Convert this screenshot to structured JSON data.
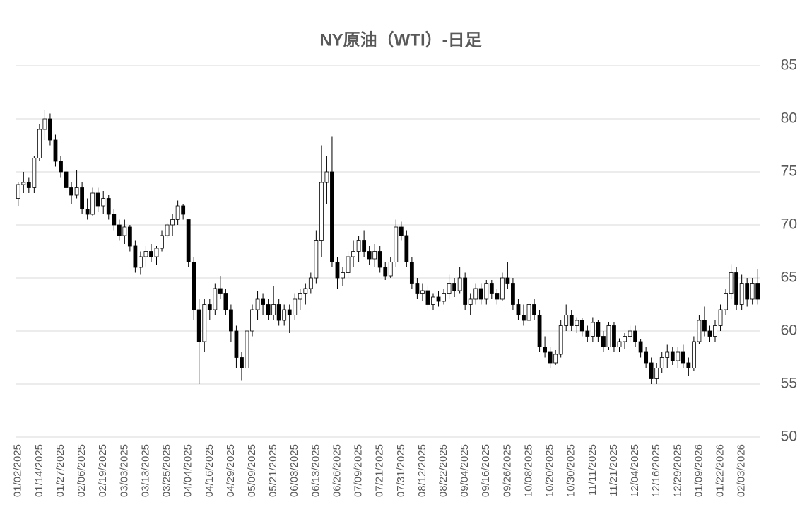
{
  "chart_data": {
    "type": "candlestick",
    "title": "NY原油（WTI）-日足",
    "categories": [
      "01/02/2025",
      null,
      null,
      null,
      "01/14/2025",
      null,
      null,
      null,
      "01/27/2025",
      null,
      null,
      null,
      "02/06/2025",
      null,
      null,
      null,
      "02/19/2025",
      null,
      null,
      null,
      "03/03/2025",
      null,
      null,
      null,
      "03/13/2025",
      null,
      null,
      null,
      "03/25/2025",
      null,
      null,
      null,
      "04/04/2025",
      null,
      null,
      null,
      "04/16/2025",
      null,
      null,
      null,
      "04/29/2025",
      null,
      null,
      null,
      "05/09/2025",
      null,
      null,
      null,
      "05/21/2025",
      null,
      null,
      null,
      "06/03/2025",
      null,
      null,
      null,
      "06/13/2025",
      null,
      null,
      null,
      "06/26/2025",
      null,
      null,
      null,
      "07/09/2025",
      null,
      null,
      null,
      "07/21/2025",
      null,
      null,
      null,
      "07/31/2025",
      null,
      null,
      null,
      "08/12/2025",
      null,
      null,
      null,
      "08/22/2025",
      null,
      null,
      null,
      "09/04/2025",
      null,
      null,
      null,
      "09/16/2025",
      null,
      null,
      null,
      "09/26/2025",
      null,
      null,
      null,
      "10/08/2025",
      null,
      null,
      null,
      "10/20/2025",
      null,
      null,
      null,
      "10/30/2025",
      null,
      null,
      null,
      "11/11/2025",
      null,
      null,
      null,
      "11/21/2025",
      null,
      null,
      null,
      "12/04/2025",
      null,
      null,
      null,
      "12/16/2025",
      null,
      null,
      null,
      "12/29/2025",
      null,
      null,
      null,
      "01/09/2026",
      null,
      null,
      null,
      "01/22/2026",
      null,
      null,
      null,
      "02/03/2026",
      null,
      null,
      null
    ],
    "ohlc": [
      [
        72.5,
        74,
        71.8,
        73.8
      ],
      [
        73.8,
        75,
        73,
        74
      ],
      [
        74,
        74.5,
        73,
        73.5
      ],
      [
        73.5,
        76.5,
        73,
        76.3
      ],
      [
        76.3,
        79.5,
        76,
        79
      ],
      [
        79,
        80.8,
        78,
        80
      ],
      [
        80,
        80.5,
        77.5,
        78
      ],
      [
        78,
        78.5,
        75.5,
        76
      ],
      [
        76,
        76.5,
        74.5,
        75
      ],
      [
        75,
        75.5,
        73,
        73.5
      ],
      [
        73.5,
        74,
        72,
        72.8
      ],
      [
        72.8,
        75.2,
        72.5,
        73.5
      ],
      [
        73.5,
        74,
        71,
        71.5
      ],
      [
        71.5,
        72.5,
        70.5,
        71
      ],
      [
        71,
        73.5,
        70.8,
        73
      ],
      [
        73,
        73.5,
        71.2,
        71.8
      ],
      [
        71.8,
        73.2,
        71,
        72.5
      ],
      [
        72.5,
        72.8,
        70.5,
        71
      ],
      [
        71,
        71.5,
        69.5,
        70
      ],
      [
        70,
        70.5,
        68.5,
        69
      ],
      [
        69,
        70.5,
        68.2,
        69.8
      ],
      [
        69.8,
        70,
        67.5,
        68
      ],
      [
        68,
        68.5,
        65.5,
        66
      ],
      [
        66,
        67.5,
        65.3,
        67
      ],
      [
        67,
        68,
        66,
        67.5
      ],
      [
        67.5,
        68.2,
        66.5,
        67
      ],
      [
        67,
        68,
        66.2,
        67.8
      ],
      [
        67.8,
        69.5,
        67.5,
        69
      ],
      [
        69,
        70.2,
        68.8,
        70
      ],
      [
        70,
        71,
        69,
        70.5
      ],
      [
        70.5,
        72.3,
        70,
        71.8
      ],
      [
        71.8,
        72,
        70.5,
        71
      ],
      [
        70.5,
        70.5,
        66,
        66.5
      ],
      [
        66.5,
        67,
        61,
        62
      ],
      [
        62,
        63,
        55,
        59
      ],
      [
        59,
        63,
        58,
        62.5
      ],
      [
        62.5,
        63,
        61,
        62
      ],
      [
        62,
        64.5,
        61.5,
        64
      ],
      [
        64,
        65.2,
        63,
        63.5
      ],
      [
        63.5,
        64,
        61.5,
        62
      ],
      [
        62,
        62.5,
        59,
        60
      ],
      [
        60,
        60.5,
        56.5,
        57.5
      ],
      [
        57.5,
        58,
        55.3,
        56.5
      ],
      [
        56.5,
        60.5,
        56,
        60
      ],
      [
        60,
        62.5,
        59.5,
        62
      ],
      [
        62,
        63.8,
        61,
        63
      ],
      [
        63,
        63.5,
        61.5,
        62.5
      ],
      [
        62.5,
        63,
        61,
        61.5
      ],
      [
        61.5,
        64.2,
        61,
        62.5
      ],
      [
        62.5,
        63,
        60.5,
        61
      ],
      [
        61,
        62.5,
        60.5,
        62
      ],
      [
        62,
        62.5,
        59.8,
        61.5
      ],
      [
        61.5,
        63.5,
        61,
        63
      ],
      [
        63,
        64,
        62,
        63.5
      ],
      [
        63.5,
        64.5,
        62.5,
        64
      ],
      [
        64,
        65.5,
        63.5,
        65
      ],
      [
        65,
        69.5,
        64.5,
        68.5
      ],
      [
        68.5,
        77.5,
        67,
        74
      ],
      [
        74,
        76.5,
        72,
        75
      ],
      [
        75,
        78.3,
        66,
        66.5
      ],
      [
        66.5,
        67,
        64,
        65
      ],
      [
        65,
        66,
        64.2,
        65.5
      ],
      [
        65.5,
        67.5,
        65,
        67
      ],
      [
        67,
        68.5,
        66,
        67.5
      ],
      [
        67.5,
        69,
        66.5,
        68.5
      ],
      [
        68.5,
        69.5,
        67,
        67.5
      ],
      [
        67.5,
        68,
        66.2,
        66.8
      ],
      [
        66.8,
        68.2,
        66,
        67.5
      ],
      [
        67.5,
        68,
        65.5,
        66
      ],
      [
        66,
        66.5,
        64.8,
        65.2
      ],
      [
        65.2,
        67,
        65,
        66.5
      ],
      [
        66.5,
        70.5,
        66,
        69.8
      ],
      [
        69.8,
        70.3,
        68.5,
        69
      ],
      [
        69,
        69.5,
        66,
        66.5
      ],
      [
        66.5,
        67,
        64,
        64.5
      ],
      [
        64.5,
        65,
        63,
        63.5
      ],
      [
        63.5,
        64.5,
        62.8,
        63.8
      ],
      [
        63.8,
        64.2,
        62,
        62.5
      ],
      [
        62.5,
        63.5,
        62,
        63.2
      ],
      [
        63.2,
        63.8,
        62.3,
        62.8
      ],
      [
        62.8,
        64,
        62.5,
        63.5
      ],
      [
        63.5,
        65.3,
        63,
        64.5
      ],
      [
        64.5,
        65,
        63.2,
        63.8
      ],
      [
        63.8,
        66,
        63.5,
        65
      ],
      [
        65,
        65.5,
        62,
        62.5
      ],
      [
        62.5,
        63.5,
        61.5,
        63
      ],
      [
        63,
        64.5,
        62.5,
        64
      ],
      [
        64,
        64.5,
        62.5,
        63
      ],
      [
        63,
        64.8,
        62.5,
        64.5
      ],
      [
        64.5,
        64.8,
        63,
        63.5
      ],
      [
        63.5,
        64,
        62.5,
        63
      ],
      [
        63,
        65.5,
        62.8,
        65
      ],
      [
        65,
        66.5,
        64,
        64.5
      ],
      [
        64.5,
        65,
        62,
        62.5
      ],
      [
        62.5,
        63,
        61,
        61.5
      ],
      [
        61.5,
        62.5,
        60.5,
        61
      ],
      [
        61,
        62.8,
        60.5,
        62.5
      ],
      [
        62.5,
        63,
        61,
        61.5
      ],
      [
        61.5,
        62,
        58,
        58.5
      ],
      [
        58.5,
        59.5,
        57.5,
        58
      ],
      [
        58,
        58.5,
        56.5,
        57
      ],
      [
        57,
        58.2,
        56.8,
        57.8
      ],
      [
        57.8,
        61,
        57.5,
        60.5
      ],
      [
        60.5,
        62.5,
        60,
        61.5
      ],
      [
        61.5,
        62,
        60,
        60.5
      ],
      [
        60.5,
        61.3,
        59.8,
        61
      ],
      [
        61,
        61.2,
        59.5,
        60
      ],
      [
        60,
        60.5,
        59,
        59.5
      ],
      [
        59.5,
        61.3,
        59,
        60.8
      ],
      [
        60.8,
        61,
        59,
        59.5
      ],
      [
        59.5,
        60,
        58,
        58.5
      ],
      [
        58.5,
        60.8,
        58.2,
        60.5
      ],
      [
        60.5,
        60.8,
        58,
        58.5
      ],
      [
        58.5,
        59.3,
        58,
        59
      ],
      [
        59,
        59.8,
        58.3,
        59.5
      ],
      [
        59.5,
        60.5,
        59,
        60
      ],
      [
        60,
        60.5,
        58.5,
        59
      ],
      [
        59,
        59.2,
        57.5,
        58
      ],
      [
        58,
        58.5,
        56.5,
        57
      ],
      [
        57,
        57.5,
        55,
        55.5
      ],
      [
        55.5,
        57,
        55,
        56.5
      ],
      [
        56.5,
        58,
        56,
        57.5
      ],
      [
        57.5,
        58.7,
        56.5,
        58
      ],
      [
        58,
        58.5,
        56.8,
        57.2
      ],
      [
        57.2,
        58.5,
        56.5,
        58
      ],
      [
        58,
        58.7,
        56.5,
        57
      ],
      [
        57,
        57.5,
        55.8,
        56.5
      ],
      [
        56.5,
        59.5,
        56.2,
        59
      ],
      [
        59,
        61.5,
        58.8,
        61
      ],
      [
        61,
        62.3,
        59.5,
        60
      ],
      [
        60,
        60.5,
        59,
        59.5
      ],
      [
        59.5,
        61,
        59,
        60.5
      ],
      [
        60.5,
        62.5,
        60,
        62
      ],
      [
        62,
        64,
        61.5,
        63.5
      ],
      [
        63.5,
        66.3,
        63,
        65.5
      ],
      [
        65.5,
        66,
        62,
        62.5
      ],
      [
        62.5,
        65.3,
        62,
        64.5
      ],
      [
        64.5,
        65,
        62.3,
        63
      ],
      [
        63,
        65,
        62.5,
        64.5
      ],
      [
        64.5,
        65.8,
        62.5,
        63
      ]
    ],
    "up_color": "#ffffff",
    "down_color": "#000000",
    "ylim": [
      50,
      85
    ],
    "yticks": [
      50,
      55,
      60,
      65,
      70,
      75,
      80,
      85
    ],
    "grid": true
  }
}
